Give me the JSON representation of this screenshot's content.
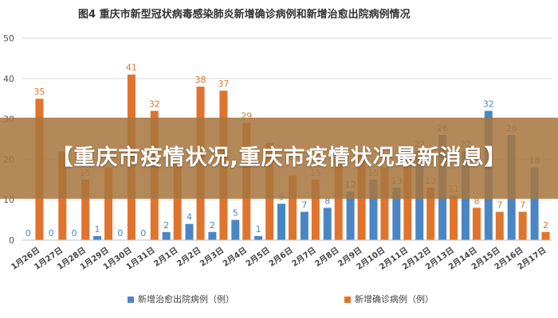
{
  "chart_data": {
    "type": "bar",
    "title": "图4   重庆市新型冠状病毒感染肺炎新增确诊病例和新增治愈出院病例情况",
    "xlabel": "",
    "ylabel": "",
    "ylim": [
      0,
      50
    ],
    "yticks": [
      "0",
      "10",
      "20",
      "30",
      "40",
      "50"
    ],
    "grid": true,
    "legend_position": "bottom",
    "categories": [
      "1月26日",
      "1月27日",
      "1月28日",
      "1月29日",
      "1月30日",
      "1月31日",
      "2月1日",
      "2月2日",
      "2月3日",
      "2月4日",
      "2月5日",
      "2月6日",
      "2月7日",
      "2月8日",
      "2月9日",
      "2月10日",
      "2月11日",
      "2月12日",
      "2月13日",
      "2月14日",
      "2月15日",
      "2月16日",
      "2月17日"
    ],
    "series": [
      {
        "name": "新增治愈出院病例（例）",
        "color": "#4a86c5",
        "values": [
          0,
          0,
          0,
          1,
          0,
          0,
          2,
          4,
          2,
          5,
          1,
          9,
          7,
          8,
          12,
          15,
          13,
          22,
          26,
          22,
          32,
          26,
          18
        ],
        "labels": [
          "0",
          "0",
          "0",
          "1",
          "0",
          "0",
          "2",
          "4",
          "2",
          "5",
          "1",
          "9",
          "7",
          "8",
          "12",
          "15",
          "13",
          "22",
          "26",
          "22",
          "32",
          "26",
          "18"
        ]
      },
      {
        "name": "新增确诊病例（例）",
        "color": "#e0742e",
        "values": [
          35,
          22,
          15,
          18,
          41,
          32,
          22,
          38,
          37,
          29,
          24,
          16,
          15,
          20,
          22,
          18,
          19,
          13,
          11,
          8,
          7,
          7,
          2
        ],
        "labels": [
          "35",
          "",
          "15",
          "",
          "41",
          "32",
          "",
          "38",
          "37",
          "29",
          "",
          "",
          "15",
          "",
          "",
          "",
          "",
          "13",
          "11",
          "8",
          "7",
          "7",
          "2"
        ]
      }
    ]
  },
  "banner": {
    "text": "【重庆市疫情状况,重庆市疫情状况最新消息】"
  }
}
